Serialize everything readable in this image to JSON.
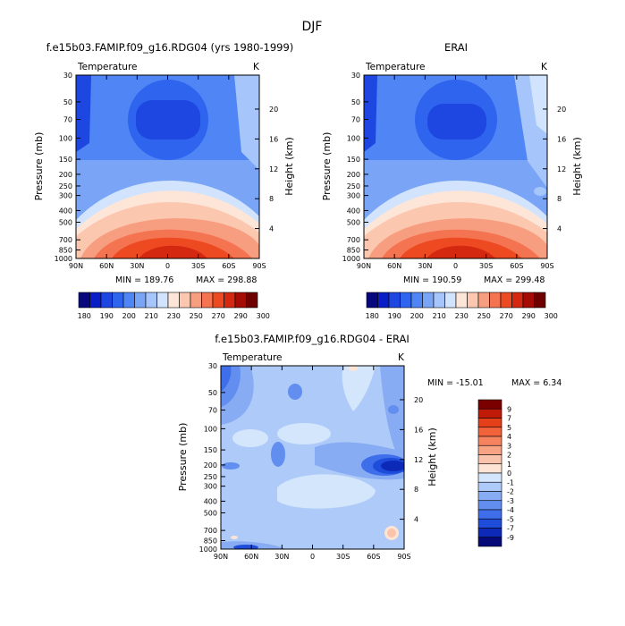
{
  "figure_title": "DJF",
  "chart_data": [
    {
      "type": "heatmap",
      "title": "f.e15b03.FAMIP.f09_g16.RDG04 (yrs 1980-1999)",
      "variable": "Temperature",
      "units": "K",
      "ylabel": "Pressure (mb)",
      "y2label": "Height (km)",
      "x_ticks": [
        "90N",
        "60N",
        "30N",
        "0",
        "30S",
        "60S",
        "90S"
      ],
      "y_ticks": [
        "30",
        "50",
        "70",
        "100",
        "150",
        "200",
        "250",
        "300",
        "400",
        "500",
        "700",
        "850",
        "1000"
      ],
      "y2_ticks": [
        "20",
        "16",
        "12",
        "8",
        "4"
      ],
      "min_label": "MIN = 189.76",
      "max_label": "MAX = 298.88",
      "min": 189.76,
      "max": 298.88
    },
    {
      "type": "heatmap",
      "title": "ERAI",
      "variable": "Temperature",
      "units": "K",
      "ylabel": "Pressure (mb)",
      "y2label": "Height (km)",
      "x_ticks": [
        "90N",
        "60N",
        "30N",
        "0",
        "30S",
        "60S",
        "90S"
      ],
      "y_ticks": [
        "30",
        "50",
        "70",
        "100",
        "150",
        "200",
        "250",
        "300",
        "400",
        "500",
        "700",
        "850",
        "1000"
      ],
      "y2_ticks": [
        "20",
        "16",
        "12",
        "8",
        "4"
      ],
      "min_label": "MIN = 190.59",
      "max_label": "MAX = 299.48",
      "min": 190.59,
      "max": 299.48
    },
    {
      "type": "heatmap",
      "title": "f.e15b03.FAMIP.f09_g16.RDG04 - ERAI",
      "variable": "Temperature",
      "units": "K",
      "ylabel": "Pressure (mb)",
      "y2label": "Height (km)",
      "x_ticks": [
        "90N",
        "60N",
        "30N",
        "0",
        "30S",
        "60S",
        "90S"
      ],
      "y_ticks": [
        "30",
        "50",
        "70",
        "100",
        "150",
        "200",
        "250",
        "300",
        "400",
        "500",
        "700",
        "850",
        "1000"
      ],
      "y2_ticks": [
        "20",
        "16",
        "12",
        "8",
        "4"
      ],
      "min_label": "MIN = -15.01",
      "max_label": "MAX = 6.34",
      "min": -15.01,
      "max": 6.34
    }
  ],
  "colorbars": {
    "abs": {
      "labels": [
        "180",
        "190",
        "200",
        "210",
        "230",
        "250",
        "270",
        "290",
        "300"
      ],
      "colors": [
        "#08087e",
        "#0a1ec8",
        "#1e46e1",
        "#2f64ee",
        "#4f85f5",
        "#7aa5f7",
        "#a6c5fa",
        "#d2e4fd",
        "#fde6d8",
        "#fbc7af",
        "#f89e80",
        "#f47351",
        "#ee4a22",
        "#d42810",
        "#a60c06",
        "#6e0000"
      ]
    },
    "diff": {
      "labels": [
        "9",
        "7",
        "5",
        "4",
        "3",
        "2",
        "1",
        "0",
        "-1",
        "-2",
        "-3",
        "-4",
        "-5",
        "-7",
        "-9"
      ],
      "colors": [
        "#7a0000",
        "#c01a08",
        "#e5401a",
        "#f2623b",
        "#f5835f",
        "#f7a384",
        "#fac3ab",
        "#fde4d4",
        "#d4e6fc",
        "#aecaf8",
        "#88acf3",
        "#628ef0",
        "#3e6eea",
        "#1e4ddc",
        "#0d29b8",
        "#050a78"
      ]
    }
  }
}
